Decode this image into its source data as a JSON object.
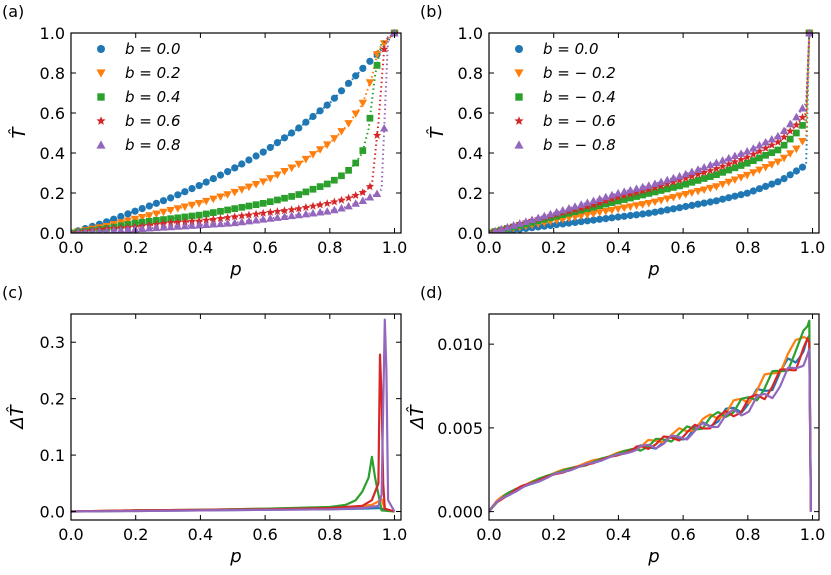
{
  "figure": {
    "description_hidden": false
  },
  "colors": {
    "blue": "#1f77b4",
    "orange": "#ff7f0e",
    "green": "#2ca02c",
    "red": "#d62728",
    "purple": "#9467bd"
  },
  "chart_data": [
    {
      "panel": "(a)",
      "type": "scatter",
      "xlabel": "p",
      "ylabel": "T̂",
      "xlim": [
        0.0,
        1.02
      ],
      "ylim": [
        0.0,
        1.0
      ],
      "xticks": [
        "0.0",
        "0.2",
        "0.4",
        "0.6",
        "0.8",
        "1.0"
      ],
      "yticks": [
        "0.0",
        "0.2",
        "0.4",
        "0.6",
        "0.8",
        "1.0"
      ],
      "legend_position": "top-left",
      "series": [
        {
          "name": "b = 0.0",
          "marker": "circle",
          "color": "#1f77b4",
          "x": [
            0.0,
            0.1,
            0.2,
            0.3,
            0.4,
            0.5,
            0.6,
            0.7,
            0.8,
            0.9,
            0.95,
            1.0
          ],
          "y": [
            0.0,
            0.05,
            0.11,
            0.17,
            0.24,
            0.32,
            0.41,
            0.52,
            0.65,
            0.82,
            0.9,
            1.0
          ]
        },
        {
          "name": "b = 0.2",
          "marker": "triangle-down",
          "color": "#ff7f0e",
          "x": [
            0.0,
            0.1,
            0.2,
            0.3,
            0.4,
            0.5,
            0.6,
            0.7,
            0.8,
            0.85,
            0.9,
            0.93,
            0.95,
            0.97,
            1.0
          ],
          "y": [
            0.0,
            0.03,
            0.07,
            0.11,
            0.15,
            0.2,
            0.26,
            0.34,
            0.45,
            0.53,
            0.64,
            0.78,
            0.92,
            0.95,
            1.0
          ]
        },
        {
          "name": "b = 0.4",
          "marker": "square",
          "color": "#2ca02c",
          "x": [
            0.0,
            0.1,
            0.2,
            0.3,
            0.4,
            0.5,
            0.6,
            0.7,
            0.8,
            0.85,
            0.88,
            0.9,
            0.92,
            0.94,
            0.96,
            1.0
          ],
          "y": [
            0.0,
            0.02,
            0.05,
            0.07,
            0.09,
            0.12,
            0.15,
            0.19,
            0.25,
            0.3,
            0.35,
            0.4,
            0.52,
            0.79,
            0.95,
            1.0
          ]
        },
        {
          "name": "b = 0.6",
          "marker": "star",
          "color": "#d62728",
          "x": [
            0.0,
            0.1,
            0.2,
            0.3,
            0.4,
            0.5,
            0.6,
            0.7,
            0.8,
            0.85,
            0.9,
            0.93,
            0.95,
            0.97,
            1.0
          ],
          "y": [
            0.0,
            0.02,
            0.03,
            0.05,
            0.06,
            0.08,
            0.1,
            0.12,
            0.15,
            0.17,
            0.2,
            0.24,
            0.55,
            0.96,
            1.0
          ]
        },
        {
          "name": "b = 0.8",
          "marker": "triangle-up",
          "color": "#9467bd",
          "x": [
            0.0,
            0.1,
            0.2,
            0.3,
            0.4,
            0.5,
            0.6,
            0.7,
            0.8,
            0.85,
            0.9,
            0.95,
            0.96,
            0.98,
            1.0
          ],
          "y": [
            0.0,
            0.01,
            0.02,
            0.03,
            0.04,
            0.05,
            0.07,
            0.09,
            0.11,
            0.13,
            0.16,
            0.2,
            0.22,
            0.98,
            1.0
          ]
        }
      ]
    },
    {
      "panel": "(b)",
      "type": "scatter",
      "xlabel": "p",
      "ylabel": "T̂",
      "xlim": [
        0.0,
        1.02
      ],
      "ylim": [
        0.0,
        1.0
      ],
      "xticks": [
        "0.0",
        "0.2",
        "0.4",
        "0.6",
        "0.8",
        "1.0"
      ],
      "yticks": [
        "0.0",
        "0.2",
        "0.4",
        "0.6",
        "0.8",
        "1.0"
      ],
      "legend_position": "top-left",
      "series": [
        {
          "name": "b = 0.0",
          "marker": "circle",
          "color": "#1f77b4",
          "x": [
            0.0,
            0.1,
            0.2,
            0.3,
            0.4,
            0.5,
            0.6,
            0.7,
            0.8,
            0.9,
            0.95,
            0.98,
            0.99
          ],
          "y": [
            0.0,
            0.02,
            0.04,
            0.06,
            0.08,
            0.1,
            0.13,
            0.16,
            0.2,
            0.26,
            0.31,
            0.34,
            1.0
          ]
        },
        {
          "name": "b = − 0.2",
          "marker": "triangle-down",
          "color": "#ff7f0e",
          "x": [
            0.0,
            0.1,
            0.2,
            0.3,
            0.4,
            0.5,
            0.6,
            0.7,
            0.8,
            0.9,
            0.95,
            0.98,
            0.99
          ],
          "y": [
            0.0,
            0.03,
            0.06,
            0.09,
            0.12,
            0.15,
            0.19,
            0.23,
            0.29,
            0.36,
            0.42,
            0.48,
            1.0
          ]
        },
        {
          "name": "b = − 0.4",
          "marker": "square",
          "color": "#2ca02c",
          "x": [
            0.0,
            0.1,
            0.2,
            0.3,
            0.4,
            0.5,
            0.6,
            0.7,
            0.8,
            0.9,
            0.95,
            0.98,
            0.99
          ],
          "y": [
            0.0,
            0.04,
            0.08,
            0.12,
            0.16,
            0.2,
            0.24,
            0.29,
            0.35,
            0.42,
            0.5,
            0.56,
            1.0
          ]
        },
        {
          "name": "b = − 0.6",
          "marker": "star",
          "color": "#d62728",
          "x": [
            0.0,
            0.1,
            0.2,
            0.3,
            0.4,
            0.5,
            0.6,
            0.7,
            0.8,
            0.9,
            0.95,
            0.98,
            0.99
          ],
          "y": [
            0.0,
            0.05,
            0.09,
            0.13,
            0.18,
            0.22,
            0.27,
            0.32,
            0.38,
            0.46,
            0.54,
            0.6,
            1.0
          ]
        },
        {
          "name": "b = − 0.8",
          "marker": "triangle-up",
          "color": "#9467bd",
          "x": [
            0.0,
            0.1,
            0.2,
            0.3,
            0.4,
            0.5,
            0.6,
            0.7,
            0.8,
            0.9,
            0.95,
            0.98,
            0.99
          ],
          "y": [
            0.0,
            0.05,
            0.1,
            0.15,
            0.2,
            0.24,
            0.29,
            0.35,
            0.41,
            0.49,
            0.58,
            0.65,
            1.0
          ]
        }
      ]
    },
    {
      "panel": "(c)",
      "type": "line",
      "xlabel": "p",
      "ylabel": "ΔT̂",
      "xlim": [
        0.0,
        1.02
      ],
      "ylim": [
        -0.015,
        0.35
      ],
      "xticks": [
        "0.0",
        "0.2",
        "0.4",
        "0.6",
        "0.8",
        "1.0"
      ],
      "yticks": [
        "0.0",
        "0.1",
        "0.2",
        "0.3"
      ],
      "series": [
        {
          "name": "b = 0.0",
          "color": "#1f77b4",
          "x": [
            0.0,
            0.2,
            0.4,
            0.6,
            0.8,
            0.9,
            0.95,
            0.98,
            1.0
          ],
          "y": [
            0.0,
            0.001,
            0.002,
            0.003,
            0.004,
            0.005,
            0.006,
            0.003,
            0.0
          ]
        },
        {
          "name": "b = 0.2",
          "color": "#ff7f0e",
          "x": [
            0.0,
            0.2,
            0.4,
            0.6,
            0.8,
            0.9,
            0.93,
            0.95,
            0.96,
            0.97,
            1.0
          ],
          "y": [
            0.0,
            0.002,
            0.003,
            0.005,
            0.007,
            0.009,
            0.012,
            0.018,
            0.022,
            0.004,
            0.0
          ]
        },
        {
          "name": "b = 0.4",
          "color": "#2ca02c",
          "x": [
            0.0,
            0.2,
            0.4,
            0.6,
            0.8,
            0.85,
            0.88,
            0.9,
            0.92,
            0.93,
            0.94,
            0.96,
            1.0
          ],
          "y": [
            0.0,
            0.002,
            0.003,
            0.005,
            0.008,
            0.012,
            0.02,
            0.035,
            0.06,
            0.097,
            0.06,
            0.002,
            0.0
          ]
        },
        {
          "name": "b = 0.6",
          "color": "#d62728",
          "x": [
            0.0,
            0.2,
            0.4,
            0.6,
            0.8,
            0.9,
            0.93,
            0.95,
            0.955,
            0.96,
            0.965,
            0.97,
            1.0
          ],
          "y": [
            0.0,
            0.002,
            0.003,
            0.004,
            0.006,
            0.01,
            0.02,
            0.05,
            0.278,
            0.2,
            0.05,
            0.005,
            0.0
          ]
        },
        {
          "name": "b = 0.8",
          "color": "#9467bd",
          "x": [
            0.0,
            0.2,
            0.4,
            0.6,
            0.8,
            0.9,
            0.95,
            0.96,
            0.97,
            0.975,
            0.98,
            1.0
          ],
          "y": [
            0.0,
            0.001,
            0.002,
            0.003,
            0.004,
            0.006,
            0.01,
            0.03,
            0.34,
            0.25,
            0.02,
            0.0
          ]
        }
      ]
    },
    {
      "panel": "(d)",
      "type": "line",
      "xlabel": "p",
      "ylabel": "ΔT̂",
      "xlim": [
        0.0,
        1.02
      ],
      "ylim": [
        -0.0005,
        0.0118
      ],
      "xticks": [
        "0.0",
        "0.2",
        "0.4",
        "0.6",
        "0.8",
        "1.0"
      ],
      "yticks": [
        "0.000",
        "0.005",
        "0.010"
      ],
      "series": [
        {
          "name": "b = 0.0",
          "color": "#1f77b4",
          "x": [
            0.0,
            0.02,
            0.05,
            0.1,
            0.2,
            0.3,
            0.4,
            0.5,
            0.6,
            0.7,
            0.8,
            0.85,
            0.9,
            0.95,
            0.98,
            0.99,
            0.995
          ],
          "y": [
            0.0,
            0.0005,
            0.0009,
            0.0014,
            0.0022,
            0.0028,
            0.0034,
            0.0039,
            0.0045,
            0.0055,
            0.0065,
            0.0072,
            0.0082,
            0.0092,
            0.0103,
            0.0105,
            0.0
          ]
        },
        {
          "name": "b = − 0.2",
          "color": "#ff7f0e",
          "x": [
            0.0,
            0.02,
            0.05,
            0.1,
            0.2,
            0.3,
            0.4,
            0.5,
            0.6,
            0.7,
            0.8,
            0.85,
            0.9,
            0.95,
            0.98,
            0.99,
            0.995
          ],
          "y": [
            0.0,
            0.0006,
            0.001,
            0.0015,
            0.0023,
            0.0029,
            0.0035,
            0.0041,
            0.0048,
            0.0057,
            0.0068,
            0.0077,
            0.0088,
            0.0098,
            0.011,
            0.0103,
            0.0
          ]
        },
        {
          "name": "b = − 0.4",
          "color": "#2ca02c",
          "x": [
            0.0,
            0.02,
            0.05,
            0.1,
            0.2,
            0.3,
            0.4,
            0.5,
            0.6,
            0.7,
            0.8,
            0.85,
            0.9,
            0.95,
            0.98,
            0.99,
            0.995
          ],
          "y": [
            0.0,
            0.0005,
            0.001,
            0.0015,
            0.0023,
            0.0028,
            0.0035,
            0.004,
            0.0047,
            0.0056,
            0.0066,
            0.0074,
            0.0084,
            0.0095,
            0.0106,
            0.0114,
            0.0
          ]
        },
        {
          "name": "b = − 0.6",
          "color": "#d62728",
          "x": [
            0.0,
            0.02,
            0.05,
            0.1,
            0.2,
            0.3,
            0.4,
            0.5,
            0.6,
            0.7,
            0.8,
            0.85,
            0.9,
            0.95,
            0.98,
            0.99,
            0.995
          ],
          "y": [
            0.0,
            0.0005,
            0.0009,
            0.0015,
            0.0022,
            0.0028,
            0.0034,
            0.004,
            0.0046,
            0.0054,
            0.0064,
            0.0071,
            0.008,
            0.009,
            0.0099,
            0.0101,
            0.0
          ]
        },
        {
          "name": "b = − 0.8",
          "color": "#9467bd",
          "x": [
            0.0,
            0.02,
            0.05,
            0.1,
            0.2,
            0.3,
            0.4,
            0.5,
            0.6,
            0.7,
            0.8,
            0.85,
            0.9,
            0.95,
            0.98,
            0.99,
            0.995
          ],
          "y": [
            0.0,
            0.0005,
            0.0009,
            0.0014,
            0.0022,
            0.0028,
            0.0034,
            0.0039,
            0.0045,
            0.0053,
            0.0062,
            0.0068,
            0.0076,
            0.0086,
            0.0095,
            0.0097,
            0.0
          ]
        }
      ]
    }
  ]
}
